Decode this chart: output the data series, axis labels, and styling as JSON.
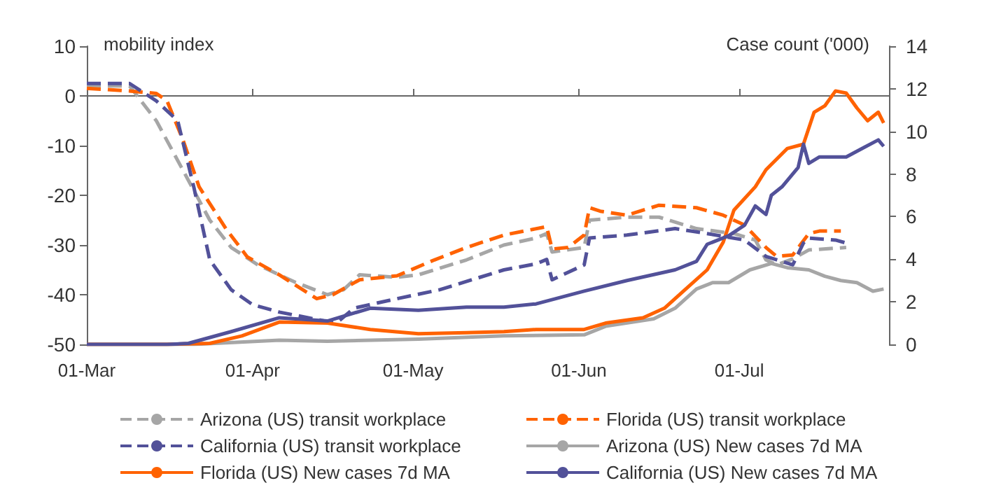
{
  "chart_data": {
    "type": "line",
    "ylabel": "mobility index",
    "y2label": "Case count ('000)",
    "xlim": [
      "--03-01",
      "--07-29"
    ],
    "xticks": [
      {
        "value": "--03-01",
        "label": "01-Mar"
      },
      {
        "value": "--04-01",
        "label": "01-Apr"
      },
      {
        "value": "--05-01",
        "label": "01-May"
      },
      {
        "value": "--06-01",
        "label": "01-Jun"
      },
      {
        "value": "--07-01",
        "label": "01-Jul"
      }
    ],
    "ylim": [
      -50,
      10
    ],
    "yticks": [
      -50,
      -40,
      -30,
      -20,
      -10,
      0,
      10
    ],
    "y2lim": [
      0,
      14
    ],
    "y2ticks": [
      0,
      2,
      4,
      6,
      8,
      10,
      12,
      14
    ],
    "legend": "bottom",
    "marker": "none",
    "series": [
      {
        "name": "Arizona (US) transit workplace",
        "color": "#a6a6a6",
        "line_style": "dashed",
        "x": [
          "--03-01",
          "--03-09",
          "--03-14",
          "--03-19",
          "--03-24",
          "--03-28",
          "--04-02",
          "--04-09",
          "--04-15",
          "--04-18",
          "--04-21",
          "--04-28",
          "--05-02",
          "--05-11",
          "--05-18",
          "--05-24",
          "--05-26",
          "--05-27",
          "--06-02",
          "--06-03",
          "--06-10",
          "--06-16",
          "--06-23",
          "--06-30",
          "--07-04",
          "--07-06",
          "--07-08",
          "--07-11",
          "--07-14",
          "--07-21"
        ],
        "values": [
          2,
          2,
          -5,
          -15,
          -25,
          -30.5,
          -34,
          -37.5,
          -40,
          -39,
          -36,
          -36.5,
          -36,
          -33,
          -30,
          -28.6,
          -27.7,
          -31.4,
          -30.5,
          -25,
          -24.4,
          -24.4,
          -26.7,
          -27.7,
          -29,
          -33,
          -34,
          -32.8,
          -31,
          -30.5
        ]
      },
      {
        "name": "Florida (US) transit workplace",
        "color": "#ff6200",
        "line_style": "dashed",
        "x": [
          "--03-01",
          "--03-09",
          "--03-14",
          "--03-16",
          "--03-19",
          "--03-22",
          "--03-27",
          "--03-31",
          "--04-06",
          "--04-13",
          "--04-16",
          "--04-21",
          "--04-28",
          "--05-05",
          "--05-11",
          "--05-18",
          "--05-26",
          "--05-27",
          "--05-30",
          "--06-02",
          "--06-03",
          "--06-05",
          "--06-10",
          "--06-16",
          "--06-23",
          "--06-28",
          "--07-02",
          "--07-06",
          "--07-08",
          "--07-11",
          "--07-14",
          "--07-16",
          "--07-20"
        ],
        "values": [
          1.5,
          1,
          0.5,
          -1,
          -8.9,
          -18.3,
          -26.7,
          -32.4,
          -36,
          -40.8,
          -40,
          -37,
          -36.2,
          -33,
          -30.5,
          -28,
          -26.3,
          -30.8,
          -30.5,
          -28,
          -22.5,
          -23.2,
          -24,
          -22,
          -22.5,
          -24,
          -26,
          -30.5,
          -32.3,
          -32,
          -27.7,
          -27.2,
          -27.2
        ]
      },
      {
        "name": "California (US) transit workplace",
        "color": "#525199",
        "line_style": "dashed",
        "x": [
          "--03-01",
          "--03-09",
          "--03-14",
          "--03-18",
          "--03-21",
          "--03-24",
          "--03-28",
          "--04-01",
          "--04-06",
          "--04-15",
          "--04-17",
          "--04-20",
          "--04-28",
          "--05-06",
          "--05-18",
          "--05-24",
          "--05-26",
          "--05-27",
          "--06-02",
          "--06-03",
          "--06-10",
          "--06-19",
          "--06-25",
          "--07-02",
          "--07-06",
          "--07-11",
          "--07-13",
          "--07-14",
          "--07-19",
          "--07-21"
        ],
        "values": [
          2.5,
          2.5,
          -1,
          -5,
          -18.3,
          -33,
          -39,
          -42,
          -43.5,
          -45.4,
          -45.4,
          -42.7,
          -40.8,
          -39,
          -35,
          -33.8,
          -32.9,
          -37,
          -34,
          -28.6,
          -28,
          -26.7,
          -27.7,
          -29,
          -32.3,
          -34,
          -29.6,
          -28.6,
          -29,
          -29.6
        ]
      },
      {
        "name": "Arizona (US) New cases 7d MA",
        "color": "#a6a6a6",
        "line_style": "solid",
        "axis": "y2",
        "x": [
          "--03-01",
          "--03-21",
          "--04-06",
          "--04-15",
          "--05-02",
          "--05-18",
          "--06-02",
          "--06-06",
          "--06-15",
          "--06-19",
          "--06-23",
          "--06-26",
          "--06-29",
          "--07-03",
          "--07-07",
          "--07-10",
          "--07-14",
          "--07-17",
          "--07-20",
          "--07-23",
          "--07-26",
          "--07-28"
        ],
        "values": [
          0,
          0,
          0.2,
          0.15,
          0.25,
          0.4,
          0.45,
          0.85,
          1.2,
          1.7,
          2.6,
          2.9,
          2.9,
          3.5,
          3.8,
          3.6,
          3.5,
          3.2,
          3.0,
          2.9,
          2.5,
          2.6
        ]
      },
      {
        "name": "Florida (US) New cases 7d MA",
        "color": "#ff6200",
        "line_style": "solid",
        "axis": "y2",
        "x": [
          "--03-01",
          "--03-16",
          "--03-24",
          "--03-30",
          "--04-06",
          "--04-15",
          "--04-23",
          "--05-02",
          "--05-11",
          "--05-18",
          "--05-24",
          "--06-02",
          "--06-06",
          "--06-13",
          "--06-17",
          "--06-21",
          "--06-25",
          "--06-28",
          "--06-30",
          "--07-04",
          "--07-06",
          "--07-10",
          "--07-13",
          "--07-15",
          "--07-17",
          "--07-19",
          "--07-21",
          "--07-23",
          "--07-25",
          "--07-27",
          "--07-28"
        ],
        "values": [
          0,
          0,
          0.05,
          0.4,
          1.05,
          1.0,
          0.7,
          0.5,
          0.55,
          0.6,
          0.7,
          0.7,
          1.0,
          1.25,
          1.7,
          2.6,
          3.5,
          4.8,
          6.3,
          7.4,
          8.2,
          9.2,
          9.4,
          10.9,
          11.2,
          11.9,
          11.8,
          11.1,
          10.5,
          10.9,
          10.4
        ]
      },
      {
        "name": "California (US) New cases 7d MA",
        "color": "#525199",
        "line_style": "solid",
        "axis": "y2",
        "x": [
          "--03-01",
          "--03-16",
          "--03-20",
          "--03-28",
          "--04-06",
          "--04-15",
          "--04-23",
          "--05-02",
          "--05-11",
          "--05-18",
          "--05-24",
          "--06-02",
          "--06-10",
          "--06-19",
          "--06-23",
          "--06-25",
          "--06-29",
          "--07-02",
          "--07-04",
          "--07-06",
          "--07-07",
          "--07-09",
          "--07-12",
          "--07-13",
          "--07-14",
          "--07-16",
          "--07-21",
          "--07-24",
          "--07-27",
          "--07-28"
        ],
        "values": [
          0,
          0,
          0.05,
          0.6,
          1.25,
          1.1,
          1.7,
          1.6,
          1.75,
          1.75,
          1.9,
          2.5,
          3.0,
          3.5,
          3.9,
          4.7,
          5.1,
          5.6,
          6.5,
          6.1,
          7.0,
          7.4,
          8.3,
          9.4,
          8.5,
          8.8,
          8.8,
          9.2,
          9.6,
          9.3
        ]
      }
    ]
  }
}
